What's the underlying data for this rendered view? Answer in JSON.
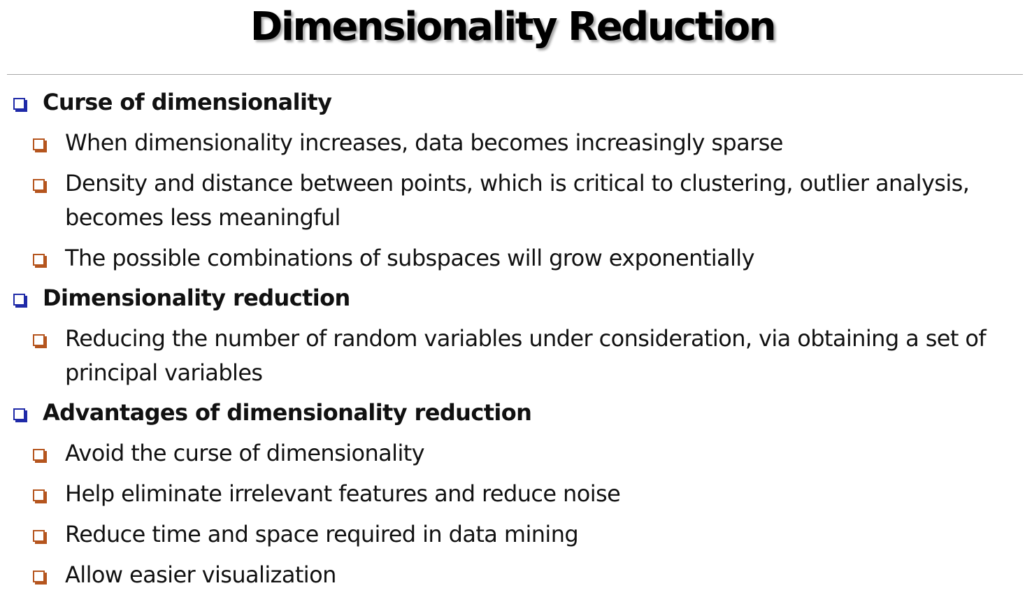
{
  "title": "Dimensionality Reduction",
  "sections": [
    {
      "heading": "Curse of dimensionality",
      "items": [
        "When dimensionality increases, data becomes increasingly sparse",
        "Density and distance between points, which is critical to clustering, outlier analysis, becomes less meaningful",
        "The possible combinations of subspaces will grow exponentially"
      ]
    },
    {
      "heading": "Dimensionality reduction",
      "items": [
        "Reducing the number of random variables under consideration, via obtaining a set of principal variables"
      ]
    },
    {
      "heading": "Advantages of dimensionality reduction",
      "items": [
        "Avoid the curse of dimensionality",
        "Help eliminate irrelevant features and reduce noise",
        "Reduce time and space required in data mining",
        "Allow easier visualization"
      ]
    }
  ],
  "colors": {
    "level1_bullet": "#1f2aa8",
    "level2_bullet": "#b5551e",
    "divider": "#a8a8a8"
  },
  "icons": {
    "level1_bullet": "hollow-square-bullet-icon",
    "level2_bullet": "hollow-square-bullet-icon"
  }
}
